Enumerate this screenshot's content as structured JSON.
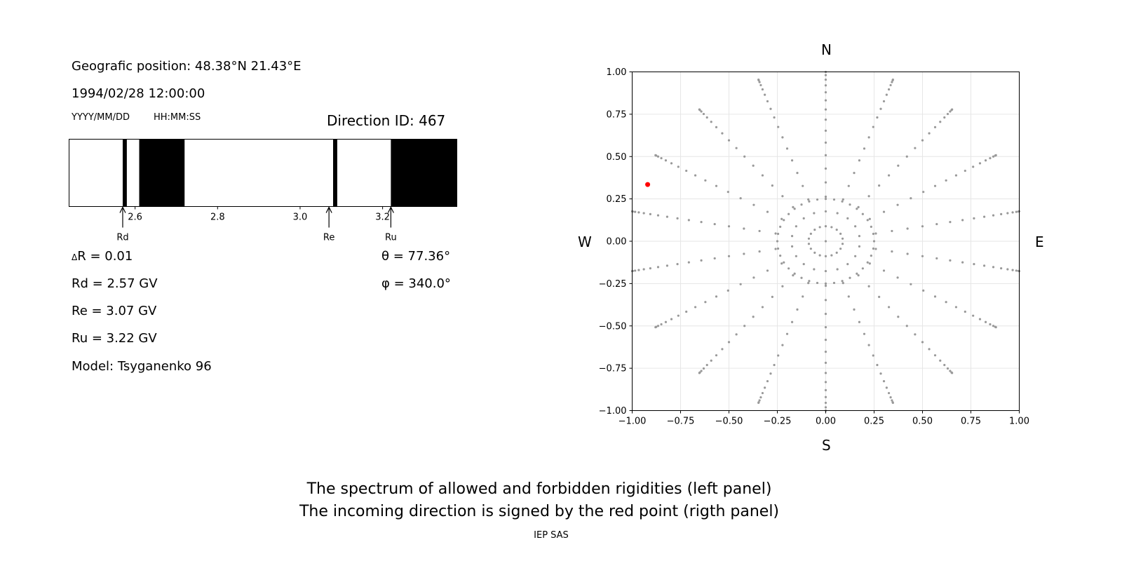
{
  "left_panel": {
    "position_line": "Geografic position: 48.38°N 21.43°E",
    "datetime": "1994/02/28 12:00:00",
    "date_format": "YYYY/MM/DD",
    "time_format": "HH:MM:SS",
    "direction_id": "Direction ID: 467",
    "delta_r": "R = 0.01",
    "delta_symbol": "Δ",
    "rd": "Rd = 2.57 GV",
    "re": "Re = 3.07 GV",
    "ru": "Ru = 3.22 GV",
    "model": "Model: Tsyganenko 96",
    "theta": "θ = 77.36°",
    "phi": "φ = 340.0°"
  },
  "right_panel": {
    "north": "N",
    "south": "S",
    "west": "W",
    "east": "E"
  },
  "caption": {
    "line1": "The spectrum of allowed and forbidden rigidities (left panel)",
    "line2": "The incoming direction is signed by the red point (rigth panel)",
    "credit": "IEP SAS"
  },
  "colors": {
    "forbidden": "#000000",
    "grid_point": "#999999",
    "selected_point": "#ff0000",
    "grid_line": "#e6e6e6"
  },
  "chart_data": [
    {
      "type": "bar",
      "name_hint": "rigidity spectrum",
      "x_range": [
        2.44,
        3.38
      ],
      "xticks": [
        2.6,
        2.8,
        3.0,
        3.2
      ],
      "forbidden_bands": [
        [
          2.57,
          2.58
        ],
        [
          2.61,
          2.72
        ],
        [
          3.08,
          3.09
        ],
        [
          3.22,
          3.38
        ]
      ],
      "markers": [
        {
          "label": "Rd",
          "value": 2.57
        },
        {
          "label": "Re",
          "value": 3.07
        },
        {
          "label": "Ru",
          "value": 3.22
        }
      ]
    },
    {
      "type": "scatter",
      "x_range": [
        -1.0,
        1.0
      ],
      "y_range": [
        -1.0,
        1.0
      ],
      "xticks": [
        -1.0,
        -0.75,
        -0.5,
        -0.25,
        0.0,
        0.25,
        0.5,
        0.75,
        1.0
      ],
      "yticks": [
        -1.0,
        -0.75,
        -0.5,
        -0.25,
        0.0,
        0.25,
        0.5,
        0.75,
        1.0
      ],
      "tick_labels": [
        "−1.00",
        "−0.75",
        "−0.50",
        "−0.25",
        "0.00",
        "0.25",
        "0.50",
        "0.75",
        "1.00"
      ],
      "grid": true,
      "direction_grid": {
        "azimuths_deg": [
          0,
          20,
          40,
          60,
          80,
          100,
          120,
          140,
          160,
          180,
          200,
          220,
          240,
          260,
          280,
          300,
          320,
          340
        ],
        "zenith_start_deg": 5,
        "zenith_step_deg": 5,
        "zenith_end_deg": 90,
        "inner_circle_radius": 0.25,
        "inner_circle_points": 36
      },
      "selected_point": {
        "x": -0.92,
        "y": 0.335
      }
    }
  ]
}
